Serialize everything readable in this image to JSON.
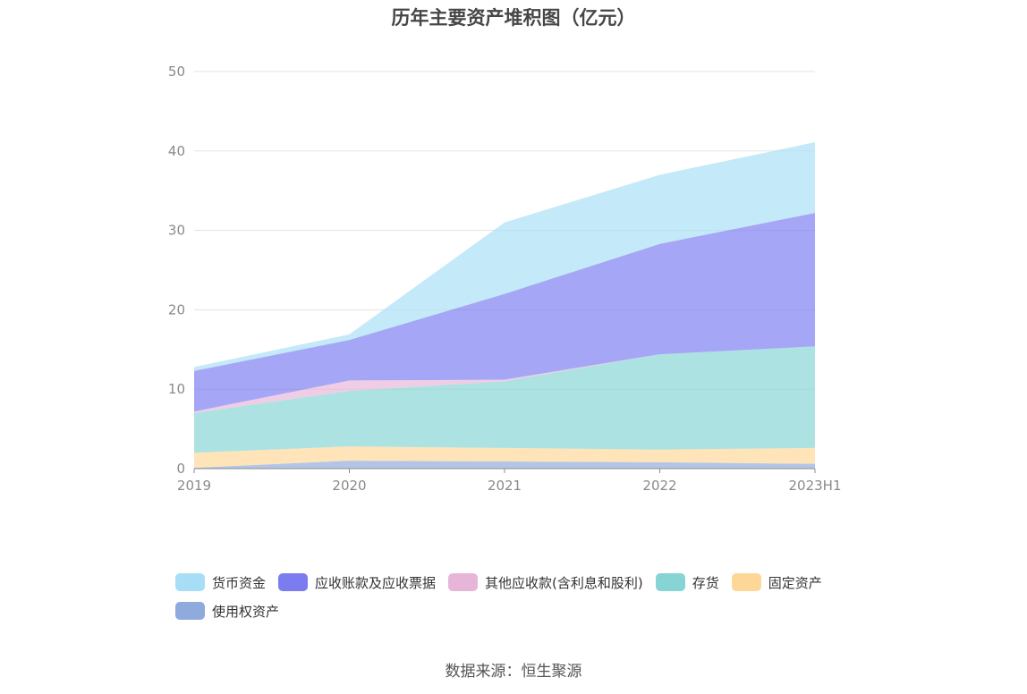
{
  "chart_data": {
    "type": "area",
    "stacked": true,
    "title": "历年主要资产堆积图（亿元）",
    "categories": [
      "2019",
      "2020",
      "2021",
      "2022",
      "2023H1"
    ],
    "ylim": [
      0,
      50
    ],
    "yticks": [
      0,
      10,
      20,
      30,
      40,
      50
    ],
    "grid": true,
    "legend_position": "bottom",
    "series": [
      {
        "name": "使用权资产",
        "color": "#8faadc",
        "values": [
          0.1,
          1.0,
          0.9,
          0.8,
          0.6
        ]
      },
      {
        "name": "固定资产",
        "color": "#fdd797",
        "values": [
          1.9,
          1.8,
          1.7,
          1.6,
          2.0
        ]
      },
      {
        "name": "存货",
        "color": "#86d4d4",
        "values": [
          5.0,
          7.0,
          8.4,
          12.0,
          12.8
        ]
      },
      {
        "name": "其他应收款(含利息和股利)",
        "color": "#e7b5d8",
        "values": [
          0.2,
          1.3,
          0.2,
          0.0,
          0.0
        ]
      },
      {
        "name": "应收账款及应收票据",
        "color": "#7b7cf0",
        "values": [
          5.1,
          5.1,
          10.8,
          13.9,
          16.8
        ]
      },
      {
        "name": "货币资金",
        "color": "#a8def5",
        "values": [
          0.5,
          0.7,
          9.0,
          8.7,
          8.9
        ]
      }
    ],
    "source": "数据来源：恒生聚源"
  },
  "legend_order": [
    "货币资金",
    "应收账款及应收票据",
    "其他应收款(含利息和股利)",
    "存货",
    "固定资产",
    "使用权资产"
  ]
}
